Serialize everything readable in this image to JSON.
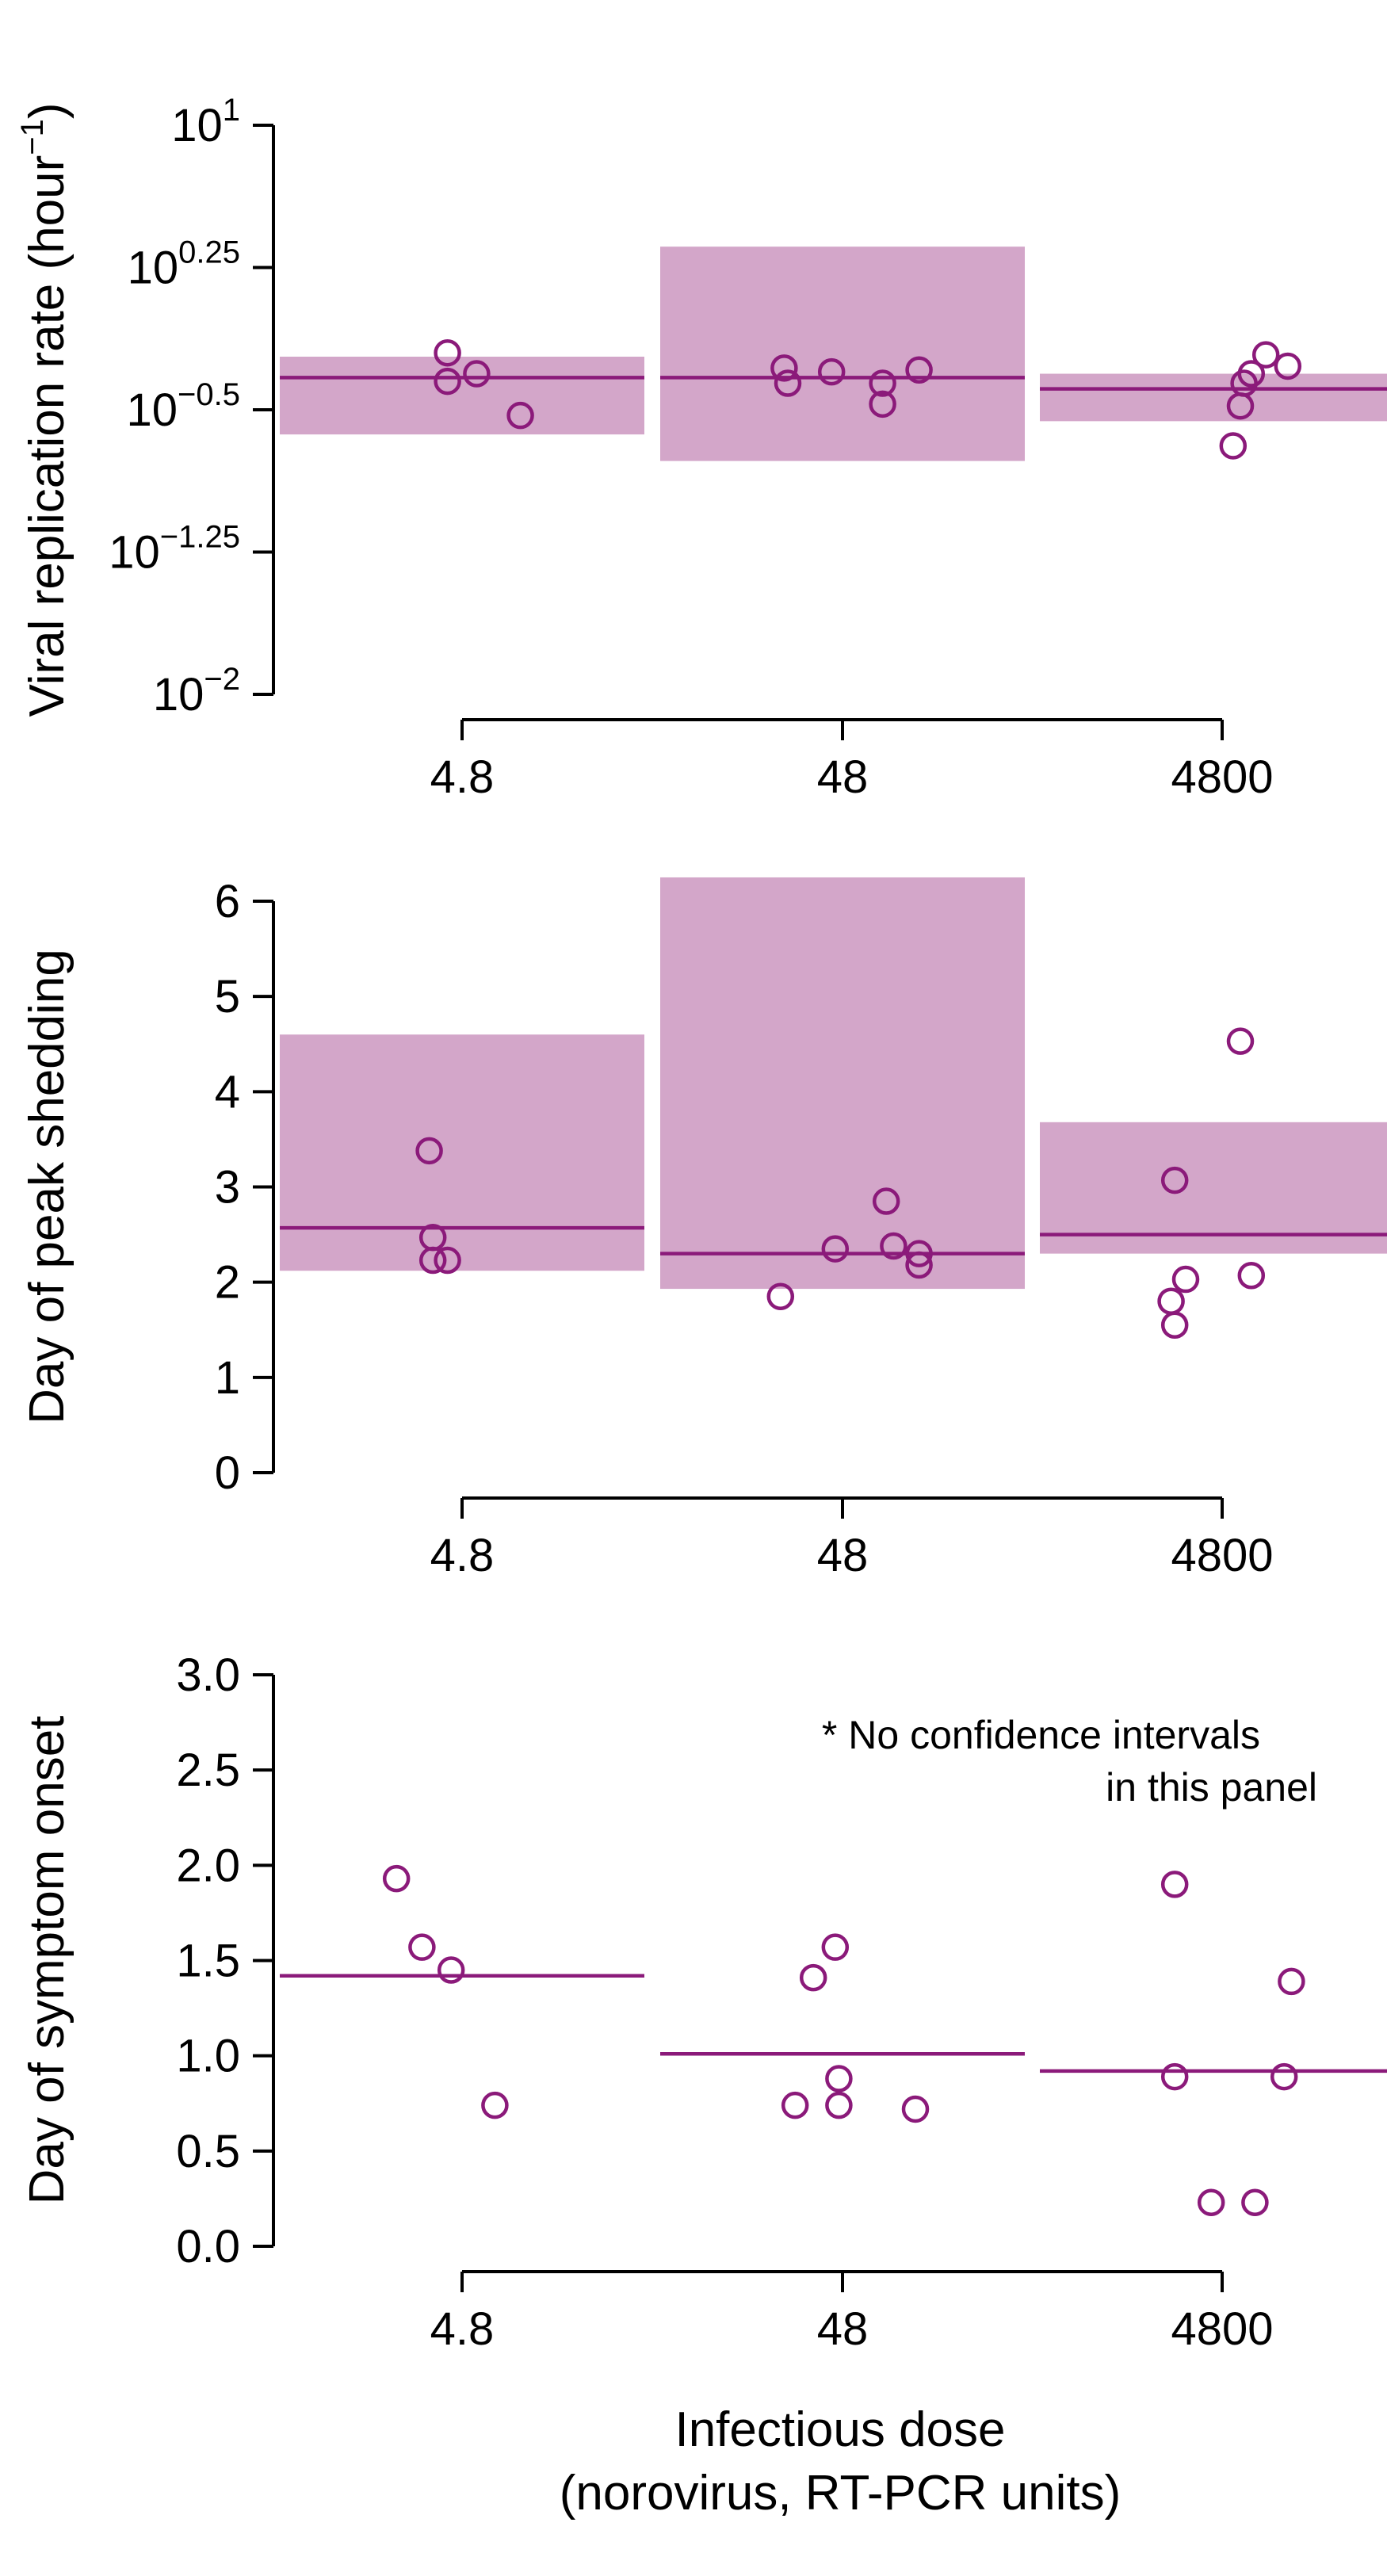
{
  "colors": {
    "point": "#8b1a7a",
    "interval_fill": "#d3a6c9"
  },
  "xlabel": [
    "Infectious dose",
    "(norovirus, RT-PCR units)"
  ],
  "chart_data": [
    {
      "type": "scatter",
      "ylabel": "Viral replication rate (hour",
      "ylabel_exp": "−1",
      "ylabel_close": ")",
      "yscale": "log10",
      "ylim": [
        -2,
        1
      ],
      "yticks": [
        {
          "base": "10",
          "exp": "−2",
          "value": -2
        },
        {
          "base": "10",
          "exp": "−1.25",
          "value": -1.25
        },
        {
          "base": "10",
          "exp": "−0.5",
          "value": -0.5
        },
        {
          "base": "10",
          "exp": "0.25",
          "value": 0.25
        },
        {
          "base": "10",
          "exp": "1",
          "value": 1
        }
      ],
      "categories": [
        "4.8",
        "48",
        "4800"
      ],
      "groups": [
        {
          "dose": "4.8",
          "median": -0.33,
          "ci": [
            -0.63,
            -0.22
          ],
          "points": [
            {
              "off": -0.04,
              "y": -0.2
            },
            {
              "off": -0.04,
              "y": -0.35
            },
            {
              "off": 0.04,
              "y": -0.31
            },
            {
              "off": 0.16,
              "y": -0.53
            }
          ]
        },
        {
          "dose": "48",
          "median": -0.33,
          "ci": [
            -0.77,
            0.36
          ],
          "points": [
            {
              "off": -0.16,
              "y": -0.28
            },
            {
              "off": -0.15,
              "y": -0.36
            },
            {
              "off": -0.03,
              "y": -0.3
            },
            {
              "off": 0.11,
              "y": -0.36
            },
            {
              "off": 0.11,
              "y": -0.47
            },
            {
              "off": 0.21,
              "y": -0.29
            }
          ]
        },
        {
          "dose": "4800",
          "median": -0.39,
          "ci": [
            -0.56,
            -0.31
          ],
          "points": [
            {
              "off": 0.03,
              "y": -0.69
            },
            {
              "off": 0.05,
              "y": -0.48
            },
            {
              "off": 0.06,
              "y": -0.36
            },
            {
              "off": 0.08,
              "y": -0.31
            },
            {
              "off": 0.12,
              "y": -0.21
            },
            {
              "off": 0.18,
              "y": -0.27
            }
          ]
        }
      ]
    },
    {
      "type": "scatter",
      "ylabel": "Day of peak shedding",
      "ylim": [
        0,
        6
      ],
      "yticks": [
        "0",
        "1",
        "2",
        "3",
        "4",
        "5",
        "6"
      ],
      "categories": [
        "4.8",
        "48",
        "4800"
      ],
      "groups": [
        {
          "dose": "4.8",
          "median": 2.57,
          "ci": [
            2.12,
            4.6
          ],
          "points": [
            {
              "off": -0.09,
              "y": 3.38
            },
            {
              "off": -0.08,
              "y": 2.47
            },
            {
              "off": -0.08,
              "y": 2.23
            },
            {
              "off": -0.04,
              "y": 2.23
            }
          ]
        },
        {
          "dose": "48",
          "median": 2.3,
          "ci": [
            1.93,
            6.25
          ],
          "points": [
            {
              "off": -0.17,
              "y": 1.85
            },
            {
              "off": -0.02,
              "y": 2.35
            },
            {
              "off": 0.12,
              "y": 2.85
            },
            {
              "off": 0.14,
              "y": 2.38
            },
            {
              "off": 0.21,
              "y": 2.3
            },
            {
              "off": 0.21,
              "y": 2.18
            }
          ]
        },
        {
          "dose": "4800",
          "median": 2.5,
          "ci": [
            2.3,
            3.68
          ],
          "points": [
            {
              "off": -0.13,
              "y": 3.07
            },
            {
              "off": -0.1,
              "y": 2.03
            },
            {
              "off": -0.14,
              "y": 1.8
            },
            {
              "off": -0.13,
              "y": 1.55
            },
            {
              "off": 0.05,
              "y": 4.53
            },
            {
              "off": 0.08,
              "y": 2.07
            }
          ]
        }
      ]
    },
    {
      "type": "scatter",
      "ylabel": "Day of symptom onset",
      "ylim": [
        0,
        3
      ],
      "yticks": [
        "0.0",
        "0.5",
        "1.0",
        "1.5",
        "2.0",
        "2.5",
        "3.0"
      ],
      "categories": [
        "4.8",
        "48",
        "4800"
      ],
      "annotation": [
        "*  No confidence intervals",
        "in this panel"
      ],
      "groups": [
        {
          "dose": "4.8",
          "median": 1.42,
          "ci": null,
          "points": [
            {
              "off": -0.18,
              "y": 1.93
            },
            {
              "off": -0.11,
              "y": 1.57
            },
            {
              "off": -0.03,
              "y": 1.45
            },
            {
              "off": 0.09,
              "y": 0.74
            }
          ]
        },
        {
          "dose": "48",
          "median": 1.01,
          "ci": null,
          "points": [
            {
              "off": -0.08,
              "y": 1.41
            },
            {
              "off": -0.13,
              "y": 0.74
            },
            {
              "off": -0.02,
              "y": 1.57
            },
            {
              "off": -0.01,
              "y": 0.88
            },
            {
              "off": -0.01,
              "y": 0.74
            },
            {
              "off": 0.2,
              "y": 0.72
            }
          ]
        },
        {
          "dose": "4800",
          "median": 0.92,
          "ci": null,
          "points": [
            {
              "off": -0.13,
              "y": 1.9
            },
            {
              "off": -0.13,
              "y": 0.89
            },
            {
              "off": -0.03,
              "y": 0.23
            },
            {
              "off": 0.09,
              "y": 0.23
            },
            {
              "off": 0.17,
              "y": 0.89
            },
            {
              "off": 0.19,
              "y": 1.39
            }
          ]
        }
      ]
    }
  ]
}
